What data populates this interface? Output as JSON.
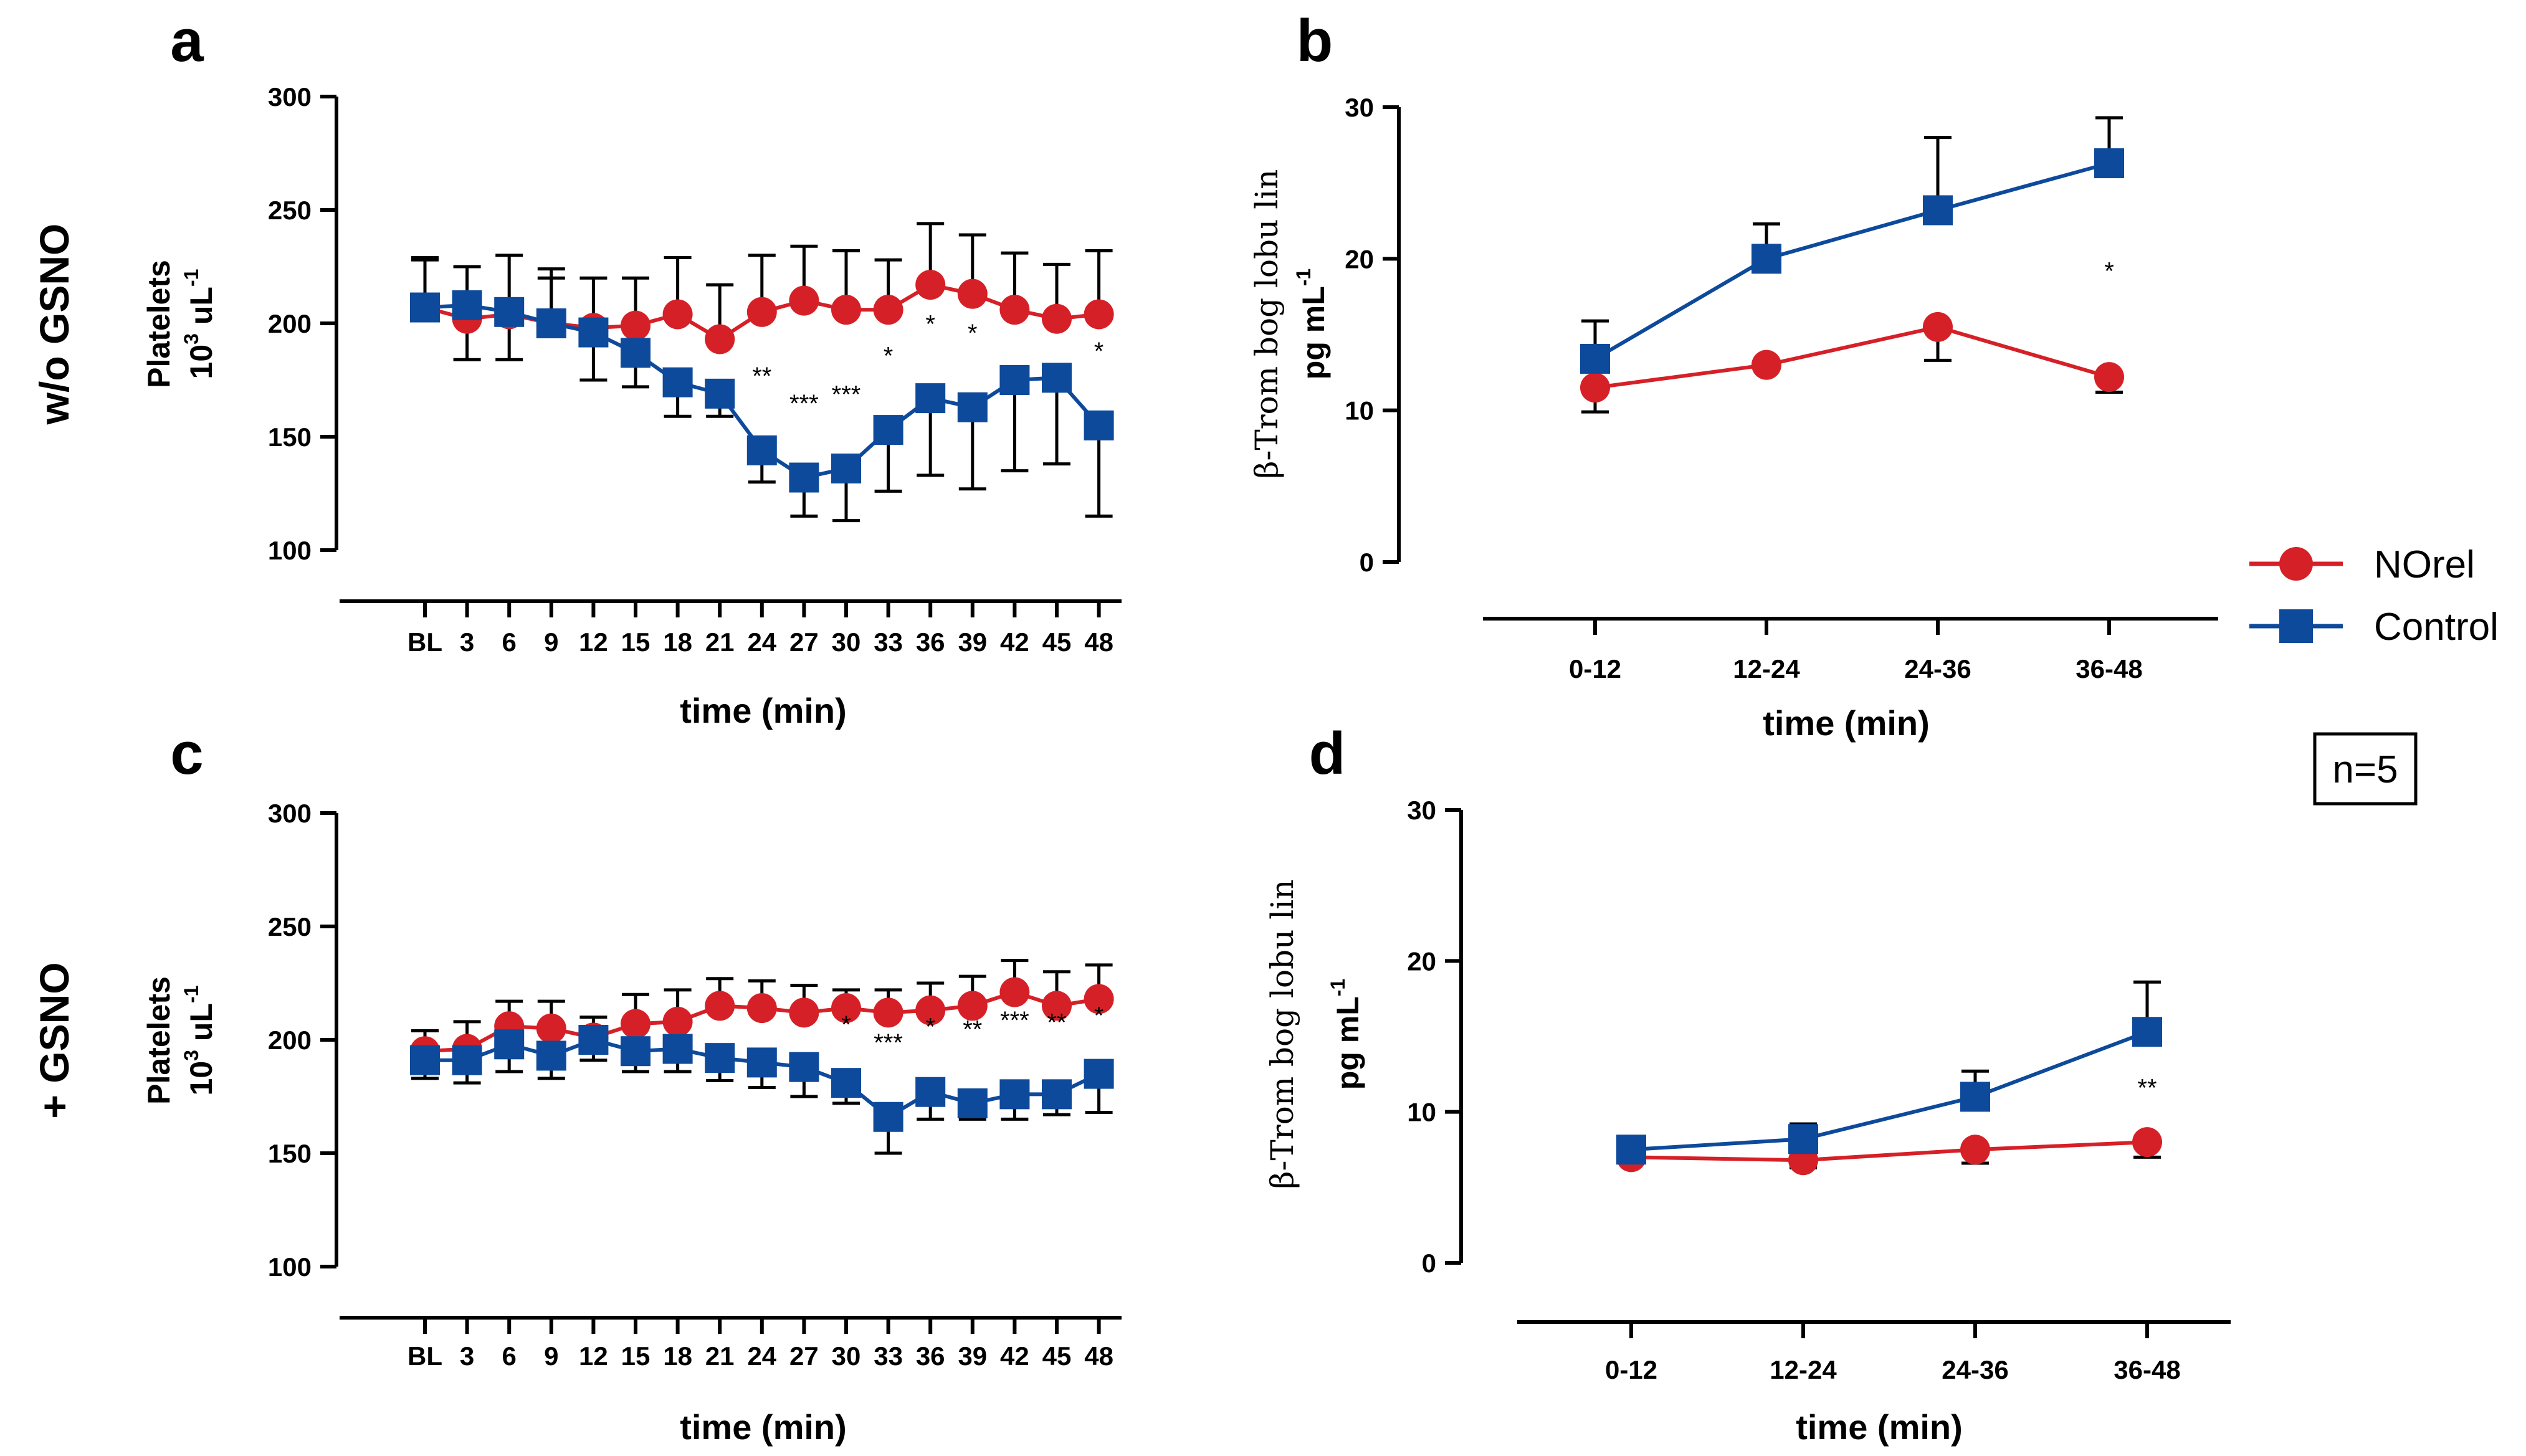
{
  "figure": {
    "row_labels": {
      "top": "w/o GSNO",
      "bottom": "+ GSNO"
    },
    "n_label": "n=5",
    "legend": [
      {
        "name": "NOrel",
        "color": "#d62027",
        "marker": "circle"
      },
      {
        "name": "Control",
        "color": "#0e4a9b",
        "marker": "square"
      }
    ]
  },
  "chart_data": [
    {
      "panel": "a",
      "type": "line",
      "title": "",
      "xlabel": "time (min)",
      "ylabel": "Platelets",
      "ylabel_unit": {
        "base": "10",
        "sup": "3",
        "mid": " uL",
        "sup2": "-1"
      },
      "categories": [
        "BL",
        "3",
        "6",
        "9",
        "12",
        "15",
        "18",
        "21",
        "24",
        "27",
        "30",
        "33",
        "36",
        "39",
        "42",
        "45",
        "48"
      ],
      "ylim": [
        100,
        300
      ],
      "yticks": [
        "100",
        "150",
        "200",
        "250",
        "300"
      ],
      "series": [
        {
          "name": "NOrel",
          "color": "#d62027",
          "marker": "circle",
          "values": [
            207,
            202,
            204,
            200,
            198,
            199,
            204,
            193,
            205,
            210,
            206,
            206,
            217,
            213,
            206,
            202,
            204
          ],
          "errors": [
            21,
            18,
            20,
            20,
            22,
            21,
            25,
            24,
            25,
            24,
            26,
            22,
            27,
            26,
            25,
            24,
            28
          ]
        },
        {
          "name": "Control",
          "color": "#0e4a9b",
          "marker": "square",
          "values": [
            207,
            208,
            205,
            200,
            196,
            187,
            174,
            169,
            144,
            132,
            136,
            153,
            167,
            163,
            175,
            176,
            155
          ],
          "errors": [
            22,
            17,
            25,
            24,
            21,
            15,
            15,
            10,
            14,
            17,
            23,
            27,
            34,
            36,
            40,
            38,
            40
          ]
        }
      ],
      "significance": [
        "",
        "",
        "",
        "",
        "",
        "",
        "",
        "",
        "**",
        "***",
        "***",
        "*",
        "*",
        "*",
        "",
        "",
        "*"
      ]
    },
    {
      "panel": "b",
      "type": "line",
      "title": "",
      "xlabel": "time (min)",
      "ylabel": "β-Trom bog lobu lin",
      "ylabel2": {
        "base": "pg mL",
        "sup": "-1"
      },
      "categories": [
        "0-12",
        "12-24",
        "24-36",
        "36-48"
      ],
      "ylim": [
        0,
        30
      ],
      "yticks": [
        "0",
        "10",
        "20",
        "30"
      ],
      "series": [
        {
          "name": "NOrel",
          "color": "#d62027",
          "marker": "circle",
          "values": [
            11.5,
            13.0,
            15.5,
            12.2
          ],
          "errors": [
            1.6,
            0,
            2.2,
            1.0
          ]
        },
        {
          "name": "Control",
          "color": "#0e4a9b",
          "marker": "square",
          "values": [
            13.4,
            20.0,
            23.2,
            26.3
          ],
          "errors": [
            2.5,
            2.3,
            4.8,
            3.0
          ]
        }
      ],
      "significance": [
        "",
        "",
        "",
        "*"
      ]
    },
    {
      "panel": "c",
      "type": "line",
      "title": "",
      "xlabel": "time (min)",
      "ylabel": "Platelets",
      "ylabel_unit": {
        "base": "10",
        "sup": "3",
        "mid": " uL",
        "sup2": "-1"
      },
      "categories": [
        "BL",
        "3",
        "6",
        "9",
        "12",
        "15",
        "18",
        "21",
        "24",
        "27",
        "30",
        "33",
        "36",
        "39",
        "42",
        "45",
        "48"
      ],
      "ylim": [
        100,
        300
      ],
      "yticks": [
        "100",
        "150",
        "200",
        "250",
        "300"
      ],
      "series": [
        {
          "name": "NOrel",
          "color": "#d62027",
          "marker": "circle",
          "values": [
            195,
            196,
            206,
            205,
            201,
            207,
            208,
            215,
            214,
            212,
            214,
            212,
            213,
            215,
            221,
            215,
            218
          ],
          "errors": [
            9,
            12,
            11,
            12,
            9,
            13,
            14,
            12,
            12,
            12,
            8,
            10,
            12,
            13,
            14,
            15,
            15
          ]
        },
        {
          "name": "Control",
          "color": "#0e4a9b",
          "marker": "square",
          "values": [
            191,
            191,
            198,
            193,
            200,
            195,
            196,
            192,
            190,
            188,
            181,
            166,
            177,
            172,
            176,
            176,
            185
          ],
          "errors": [
            8,
            10,
            12,
            10,
            9,
            9,
            10,
            10,
            11,
            13,
            9,
            16,
            12,
            7,
            11,
            9,
            17
          ]
        }
      ],
      "significance": [
        "",
        "",
        "",
        "",
        "",
        "",
        "",
        "",
        "",
        "",
        "*",
        "***",
        "*",
        "**",
        "***",
        "**",
        "*"
      ]
    },
    {
      "panel": "d",
      "type": "line",
      "title": "",
      "xlabel": "time (min)",
      "ylabel": "β-Trom bog lobu lin",
      "ylabel2": {
        "base": "pg mL",
        "sup": "-1"
      },
      "categories": [
        "0-12",
        "12-24",
        "24-36",
        "36-48"
      ],
      "ylim": [
        0,
        30
      ],
      "yticks": [
        "0",
        "10",
        "20",
        "30"
      ],
      "series": [
        {
          "name": "NOrel",
          "color": "#d62027",
          "marker": "circle",
          "values": [
            7.0,
            6.8,
            7.5,
            8.0
          ],
          "errors": [
            0,
            0.5,
            0.9,
            1.0
          ]
        },
        {
          "name": "Control",
          "color": "#0e4a9b",
          "marker": "square",
          "values": [
            7.5,
            8.2,
            11.0,
            15.3
          ],
          "errors": [
            0,
            1.0,
            1.7,
            3.3
          ]
        }
      ],
      "significance": [
        "",
        "",
        "",
        "**"
      ]
    }
  ]
}
